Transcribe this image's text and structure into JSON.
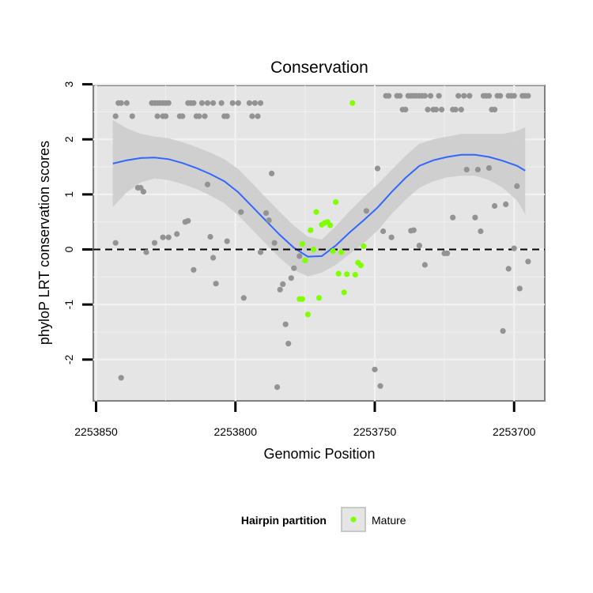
{
  "chart_data": {
    "type": "scatter",
    "title": "Conservation",
    "xlabel": "Genomic Position",
    "ylabel": "phyloP LRT conservation scores",
    "x_reversed": true,
    "xlim": [
      2253851,
      2253689
    ],
    "ylim": [
      -2.75,
      2.98
    ],
    "x_ticks": [
      2253850,
      2253800,
      2253750,
      2253700
    ],
    "x_tick_labels": [
      "2253850",
      "2253800",
      "2253750",
      "2253700"
    ],
    "y_ticks": [
      3,
      2,
      1,
      0,
      -1,
      -2
    ],
    "y_tick_labels": [
      "3",
      "2",
      "1",
      "0",
      "-1",
      "-2"
    ],
    "reference_line": {
      "y": 0,
      "style": "dashed"
    },
    "grid": true,
    "legend": {
      "title": "Hairpin partition",
      "entries": [
        "Mature"
      ],
      "position": "bottom"
    },
    "colors": {
      "background": "#e5e5e5",
      "grid": "#f2f2f2",
      "other": "#939393",
      "mature": "#7fff00",
      "smooth": "#3366ff",
      "band": "#cccccc"
    },
    "series": [
      {
        "group": "other",
        "points": [
          [
            2253843,
            2.42
          ],
          [
            2253842,
            2.66
          ],
          [
            2253841,
            2.66
          ],
          [
            2253839,
            2.66
          ],
          [
            2253837,
            2.42
          ],
          [
            2253835,
            1.12
          ],
          [
            2253834,
            1.12
          ],
          [
            2253833,
            1.05
          ],
          [
            2253832,
            -0.05
          ],
          [
            2253843,
            0.12
          ],
          [
            2253841,
            -2.33
          ],
          [
            2253830,
            2.66
          ],
          [
            2253829,
            2.66
          ],
          [
            2253828,
            2.66
          ],
          [
            2253827,
            2.66
          ],
          [
            2253826,
            2.42
          ],
          [
            2253828,
            2.42
          ],
          [
            2253826,
            2.66
          ],
          [
            2253825,
            2.66
          ],
          [
            2253824,
            2.66
          ],
          [
            2253825,
            2.42
          ],
          [
            2253824,
            0.22
          ],
          [
            2253821,
            0.28
          ],
          [
            2253820,
            2.42
          ],
          [
            2253819,
            2.42
          ],
          [
            2253817,
            2.66
          ],
          [
            2253818,
            0.5
          ],
          [
            2253817,
            0.52
          ],
          [
            2253816,
            2.66
          ],
          [
            2253815,
            2.66
          ],
          [
            2253814,
            2.42
          ],
          [
            2253813,
            2.42
          ],
          [
            2253812,
            2.66
          ],
          [
            2253811,
            2.42
          ],
          [
            2253810,
            2.66
          ],
          [
            2253809,
            0.23
          ],
          [
            2253808,
            2.66
          ],
          [
            2253807,
            -0.62
          ],
          [
            2253805,
            2.66
          ],
          [
            2253804,
            2.42
          ],
          [
            2253803,
            2.42
          ],
          [
            2253803,
            0.15
          ],
          [
            2253801,
            2.66
          ],
          [
            2253799,
            2.66
          ],
          [
            2253798,
            0.68
          ],
          [
            2253797,
            -0.88
          ],
          [
            2253795,
            2.66
          ],
          [
            2253794,
            2.42
          ],
          [
            2253793,
            2.66
          ],
          [
            2253792,
            2.42
          ],
          [
            2253791,
            2.66
          ],
          [
            2253791,
            -0.05
          ],
          [
            2253789,
            0.66
          ],
          [
            2253788,
            0.53
          ],
          [
            2253787,
            1.38
          ],
          [
            2253786,
            0.12
          ],
          [
            2253785,
            -2.5
          ],
          [
            2253784,
            -0.73
          ],
          [
            2253783,
            -0.63
          ],
          [
            2253782,
            -1.36
          ],
          [
            2253781,
            -1.71
          ],
          [
            2253780,
            -0.52
          ],
          [
            2253779,
            -0.34
          ],
          [
            2253777,
            -0.12
          ],
          [
            2253808,
            -0.15
          ],
          [
            2253815,
            -0.37
          ],
          [
            2253829,
            0.12
          ],
          [
            2253826,
            0.22
          ],
          [
            2253810,
            1.18
          ],
          [
            2253750,
            -2.18
          ],
          [
            2253749,
            1.47
          ],
          [
            2253748,
            -2.48
          ],
          [
            2253747,
            0.33
          ],
          [
            2253746,
            2.79
          ],
          [
            2253745,
            2.79
          ],
          [
            2253744,
            0.22
          ],
          [
            2253742,
            2.79
          ],
          [
            2253741,
            2.79
          ],
          [
            2253740,
            2.54
          ],
          [
            2253739,
            2.54
          ],
          [
            2253738,
            2.79
          ],
          [
            2253737,
            2.79
          ],
          [
            2253736,
            2.79
          ],
          [
            2253735,
            2.79
          ],
          [
            2253737,
            0.34
          ],
          [
            2253736,
            0.35
          ],
          [
            2253734,
            2.79
          ],
          [
            2253733,
            2.79
          ],
          [
            2253732,
            2.79
          ],
          [
            2253731,
            2.54
          ],
          [
            2253730,
            2.79
          ],
          [
            2253729,
            2.54
          ],
          [
            2253728,
            2.54
          ],
          [
            2253727,
            2.79
          ],
          [
            2253726,
            2.54
          ],
          [
            2253725,
            -0.07
          ],
          [
            2253724,
            -0.07
          ],
          [
            2253722,
            2.54
          ],
          [
            2253721,
            2.54
          ],
          [
            2253720,
            2.79
          ],
          [
            2253719,
            2.54
          ],
          [
            2253718,
            2.79
          ],
          [
            2253717,
            1.45
          ],
          [
            2253716,
            2.79
          ],
          [
            2253713,
            1.45
          ],
          [
            2253712,
            0.33
          ],
          [
            2253711,
            2.79
          ],
          [
            2253710,
            2.79
          ],
          [
            2253709,
            2.79
          ],
          [
            2253709,
            1.48
          ],
          [
            2253708,
            2.54
          ],
          [
            2253707,
            2.54
          ],
          [
            2253706,
            2.79
          ],
          [
            2253705,
            2.79
          ],
          [
            2253704,
            -1.48
          ],
          [
            2253703,
            0.82
          ],
          [
            2253702,
            2.79
          ],
          [
            2253701,
            2.79
          ],
          [
            2253700,
            2.79
          ],
          [
            2253700,
            0.02
          ],
          [
            2253699,
            1.15
          ],
          [
            2253698,
            -0.71
          ],
          [
            2253697,
            2.79
          ],
          [
            2253696,
            2.79
          ],
          [
            2253695,
            2.79
          ],
          [
            2253695,
            -0.22
          ],
          [
            2253714,
            0.58
          ],
          [
            2253734,
            0.07
          ],
          [
            2253732,
            -0.28
          ],
          [
            2253722,
            0.58
          ],
          [
            2253707,
            0.79
          ],
          [
            2253702,
            -0.35
          ],
          [
            2253753,
            0.7
          ]
        ]
      },
      {
        "group": "mature",
        "name": "Mature",
        "points": [
          [
            2253777,
            -0.9
          ],
          [
            2253776,
            0.1
          ],
          [
            2253776,
            -0.9
          ],
          [
            2253775,
            -0.2
          ],
          [
            2253774,
            -1.18
          ],
          [
            2253773,
            0.35
          ],
          [
            2253772,
            0.0
          ],
          [
            2253771,
            0.68
          ],
          [
            2253770,
            -0.88
          ],
          [
            2253769,
            0.45
          ],
          [
            2253768,
            0.48
          ],
          [
            2253767,
            0.5
          ],
          [
            2253766,
            0.44
          ],
          [
            2253765,
            -0.03
          ],
          [
            2253764,
            0.86
          ],
          [
            2253763,
            -0.44
          ],
          [
            2253762,
            -0.05
          ],
          [
            2253761,
            -0.78
          ],
          [
            2253760,
            -0.45
          ],
          [
            2253758,
            2.66
          ],
          [
            2253757,
            -0.46
          ],
          [
            2253756,
            -0.24
          ],
          [
            2253755,
            -0.29
          ],
          [
            2253754,
            0.06
          ]
        ]
      }
    ],
    "smooth": {
      "x": [
        2253844,
        2253839,
        2253834,
        2253829,
        2253824,
        2253819,
        2253814,
        2253809,
        2253804,
        2253799,
        2253794,
        2253789,
        2253784,
        2253779,
        2253774,
        2253769,
        2253764,
        2253759,
        2253754,
        2253749,
        2253744,
        2253739,
        2253734,
        2253729,
        2253724,
        2253719,
        2253714,
        2253709,
        2253704,
        2253699,
        2253696
      ],
      "y": [
        1.56,
        1.62,
        1.66,
        1.67,
        1.64,
        1.57,
        1.48,
        1.37,
        1.24,
        1.04,
        0.78,
        0.52,
        0.26,
        0.03,
        -0.13,
        -0.12,
        0.07,
        0.31,
        0.53,
        0.76,
        1.04,
        1.3,
        1.52,
        1.62,
        1.68,
        1.72,
        1.72,
        1.68,
        1.61,
        1.52,
        1.43
      ],
      "upper": [
        2.35,
        2.2,
        2.1,
        2.05,
        2.02,
        1.95,
        1.86,
        1.76,
        1.64,
        1.46,
        1.2,
        0.94,
        0.68,
        0.43,
        0.23,
        0.18,
        0.42,
        0.7,
        0.95,
        1.18,
        1.44,
        1.7,
        1.92,
        2.0,
        2.05,
        2.1,
        2.1,
        2.1,
        2.1,
        2.15,
        2.22
      ],
      "lower": [
        0.77,
        1.04,
        1.22,
        1.29,
        1.26,
        1.19,
        1.1,
        0.98,
        0.84,
        0.62,
        0.36,
        0.1,
        -0.16,
        -0.37,
        -0.49,
        -0.42,
        -0.28,
        -0.08,
        0.11,
        0.34,
        0.64,
        0.9,
        1.12,
        1.24,
        1.31,
        1.34,
        1.34,
        1.26,
        1.12,
        0.89,
        0.64
      ]
    }
  }
}
